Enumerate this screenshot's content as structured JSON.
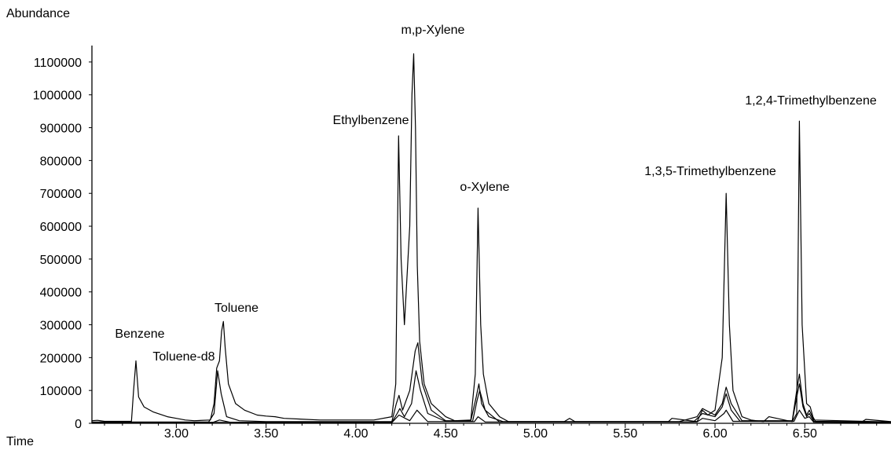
{
  "chart_data": {
    "type": "line",
    "title": "",
    "ylabel": "Abundance",
    "xlabel": "Time",
    "xlim": [
      2.53,
      6.98
    ],
    "ylim": [
      0,
      1150000
    ],
    "grid": false,
    "yticks": [
      0,
      100000,
      200000,
      300000,
      400000,
      500000,
      600000,
      700000,
      800000,
      900000,
      1000000,
      1100000
    ],
    "ytick_labels": [
      "0",
      "100000",
      "200000",
      "300000",
      "400000",
      "500000",
      "600000",
      "700000",
      "800000",
      "900000",
      "1000000",
      "1100000"
    ],
    "xticks": [
      3.0,
      3.5,
      4.0,
      4.5,
      5.0,
      5.5,
      6.0,
      6.5
    ],
    "xtick_labels": [
      "3.00",
      "3.50",
      "4.00",
      "4.50",
      "5.00",
      "5.50",
      "6.00",
      "6.50"
    ],
    "peaks": [
      {
        "label": "Benzene",
        "x": 2.77,
        "y": 190000
      },
      {
        "label": "Toluene-d8",
        "x": 3.23,
        "y": 168000
      },
      {
        "label": "Toluene",
        "x": 3.27,
        "y": 310000
      },
      {
        "label": "Ethylbenzene",
        "x": 4.24,
        "y": 875000
      },
      {
        "label": "m,p-Xylene",
        "x": 4.34,
        "y": 1125000
      },
      {
        "label": "o-Xylene",
        "x": 4.68,
        "y": 655000
      },
      {
        "label": "1,3,5-Trimethylbenzene",
        "x": 6.06,
        "y": 700000
      },
      {
        "label": "1,2,4-Trimethylbenzene",
        "x": 6.47,
        "y": 920000
      }
    ],
    "series": [
      {
        "x": [
          2.53,
          2.56,
          2.6,
          2.75,
          2.762,
          2.775,
          2.79,
          2.82,
          2.87,
          2.95,
          3.0,
          3.05,
          3.1,
          3.19,
          3.21,
          3.225,
          3.24,
          3.252,
          3.262,
          3.272,
          3.29,
          3.33,
          3.38,
          3.45,
          3.5,
          3.55,
          3.6,
          3.8,
          4.0,
          4.1,
          4.2,
          4.222,
          4.238,
          4.252,
          4.27,
          4.3,
          4.312,
          4.322,
          4.332,
          4.342,
          4.355,
          4.38,
          4.42,
          4.5,
          4.55,
          4.64,
          4.665,
          4.68,
          4.695,
          4.71,
          4.74,
          4.8,
          4.85,
          5.0,
          5.16,
          5.19,
          5.22,
          5.5,
          5.74,
          5.76,
          5.9,
          5.93,
          5.96,
          6.0,
          6.04,
          6.062,
          6.08,
          6.1,
          6.15,
          6.2,
          6.27,
          6.3,
          6.43,
          6.455,
          6.47,
          6.485,
          6.51,
          6.53,
          6.545,
          6.56,
          6.6,
          6.82,
          6.84,
          6.98
        ],
        "y": [
          8000,
          9000,
          6000,
          6000,
          100000,
          190000,
          80000,
          50000,
          35000,
          20000,
          15000,
          10000,
          8000,
          10000,
          60000,
          168000,
          190000,
          280000,
          310000,
          230000,
          120000,
          60000,
          40000,
          25000,
          22000,
          20000,
          15000,
          10000,
          10000,
          10000,
          20000,
          120000,
          875000,
          500000,
          300000,
          600000,
          1000000,
          1125000,
          900000,
          480000,
          250000,
          120000,
          60000,
          20000,
          8000,
          10000,
          150000,
          655000,
          300000,
          150000,
          60000,
          20000,
          5000,
          5000,
          5000,
          15000,
          5000,
          5000,
          5000,
          15000,
          5000,
          40000,
          25000,
          40000,
          200000,
          700000,
          300000,
          100000,
          20000,
          10000,
          5000,
          20000,
          5000,
          30000,
          920000,
          300000,
          60000,
          50000,
          20000,
          5000,
          5000,
          5000,
          12000,
          5000
        ]
      },
      {
        "x": [
          2.53,
          3.18,
          3.21,
          3.23,
          3.25,
          3.28,
          3.35,
          3.5,
          4.2,
          4.225,
          4.24,
          4.26,
          4.3,
          4.33,
          4.345,
          4.37,
          4.42,
          4.5,
          4.64,
          4.67,
          4.685,
          4.7,
          4.74,
          4.82,
          5.8,
          5.9,
          5.93,
          6.0,
          6.04,
          6.062,
          6.09,
          6.15,
          6.43,
          6.455,
          6.47,
          6.49,
          6.51,
          6.525,
          6.55,
          6.98
        ],
        "y": [
          4000,
          4000,
          30000,
          160000,
          90000,
          20000,
          8000,
          5000,
          5000,
          60000,
          85000,
          40000,
          100000,
          220000,
          245000,
          120000,
          40000,
          8000,
          8000,
          80000,
          120000,
          60000,
          20000,
          5000,
          5000,
          20000,
          45000,
          25000,
          60000,
          110000,
          60000,
          8000,
          8000,
          100000,
          150000,
          60000,
          25000,
          40000,
          10000,
          4000
        ]
      },
      {
        "x": [
          2.53,
          4.2,
          4.23,
          4.245,
          4.27,
          4.31,
          4.335,
          4.36,
          4.4,
          4.5,
          4.65,
          4.675,
          4.69,
          4.72,
          4.8,
          5.88,
          5.93,
          6.0,
          6.04,
          6.062,
          6.09,
          6.14,
          6.43,
          6.455,
          6.47,
          6.49,
          6.51,
          6.525,
          6.55,
          6.98
        ],
        "y": [
          3000,
          3000,
          30000,
          45000,
          20000,
          60000,
          160000,
          100000,
          30000,
          6000,
          6000,
          70000,
          100000,
          40000,
          4000,
          4000,
          30000,
          20000,
          50000,
          90000,
          40000,
          6000,
          6000,
          80000,
          120000,
          50000,
          20000,
          30000,
          6000,
          3000
        ]
      },
      {
        "x": [
          2.53,
          3.2,
          3.24,
          3.3,
          3.5,
          4.2,
          4.24,
          4.3,
          4.34,
          4.4,
          4.66,
          4.68,
          4.72,
          5.9,
          5.93,
          6.0,
          6.05,
          6.062,
          6.1,
          6.44,
          6.47,
          6.5,
          6.525,
          6.55,
          6.98
        ],
        "y": [
          2000,
          2000,
          10000,
          3000,
          2000,
          2000,
          25000,
          8000,
          40000,
          5000,
          5000,
          20000,
          4000,
          4000,
          15000,
          8000,
          30000,
          40000,
          6000,
          6000,
          40000,
          15000,
          20000,
          3000,
          2000
        ]
      }
    ]
  }
}
